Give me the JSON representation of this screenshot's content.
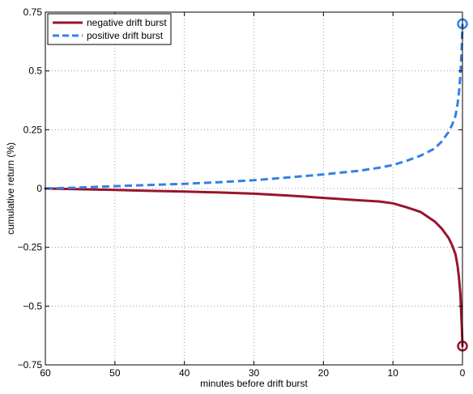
{
  "chart_data": {
    "type": "line",
    "xlabel": "minutes before drift burst",
    "ylabel": "cumulative return (%)",
    "xlim": [
      60,
      0
    ],
    "ylim": [
      -0.75,
      0.75
    ],
    "x_reversed": true,
    "grid": true,
    "x_ticks": [
      60,
      50,
      40,
      30,
      20,
      10,
      0
    ],
    "y_ticks": [
      0.75,
      0.5,
      0.25,
      0,
      -0.25,
      -0.5,
      -0.75
    ],
    "x_tick_labels": [
      "60",
      "50",
      "40",
      "30",
      "20",
      "10",
      "0"
    ],
    "y_tick_labels": [
      "0.75",
      "0.5",
      "0.25",
      "0",
      "−0.25",
      "−0.5",
      "−0.75"
    ],
    "legend_position": "top-left",
    "series": [
      {
        "name": "negative drift burst",
        "color": "#99142d",
        "style": "solid",
        "end_marker": "circle",
        "x": [
          60,
          55,
          50,
          45,
          40,
          35,
          30,
          25,
          20,
          15,
          12,
          10,
          8,
          6,
          4,
          3,
          2,
          1.5,
          1,
          0.7,
          0.5,
          0.3,
          0.1,
          0
        ],
        "y": [
          0,
          -0.003,
          -0.006,
          -0.01,
          -0.013,
          -0.017,
          -0.022,
          -0.03,
          -0.04,
          -0.05,
          -0.055,
          -0.063,
          -0.08,
          -0.1,
          -0.14,
          -0.17,
          -0.21,
          -0.24,
          -0.28,
          -0.33,
          -0.38,
          -0.45,
          -0.58,
          -0.67
        ]
      },
      {
        "name": "positive drift burst",
        "color": "#3480e4",
        "style": "dashed",
        "end_marker": "circle",
        "x": [
          60,
          55,
          50,
          45,
          40,
          35,
          30,
          25,
          20,
          15,
          12,
          10,
          8,
          6,
          4,
          3,
          2,
          1.5,
          1,
          0.7,
          0.5,
          0.3,
          0.1,
          0
        ],
        "y": [
          0,
          0.004,
          0.01,
          0.015,
          0.02,
          0.027,
          0.035,
          0.047,
          0.06,
          0.075,
          0.088,
          0.1,
          0.118,
          0.14,
          0.17,
          0.2,
          0.24,
          0.27,
          0.31,
          0.36,
          0.41,
          0.48,
          0.6,
          0.7
        ]
      }
    ]
  }
}
